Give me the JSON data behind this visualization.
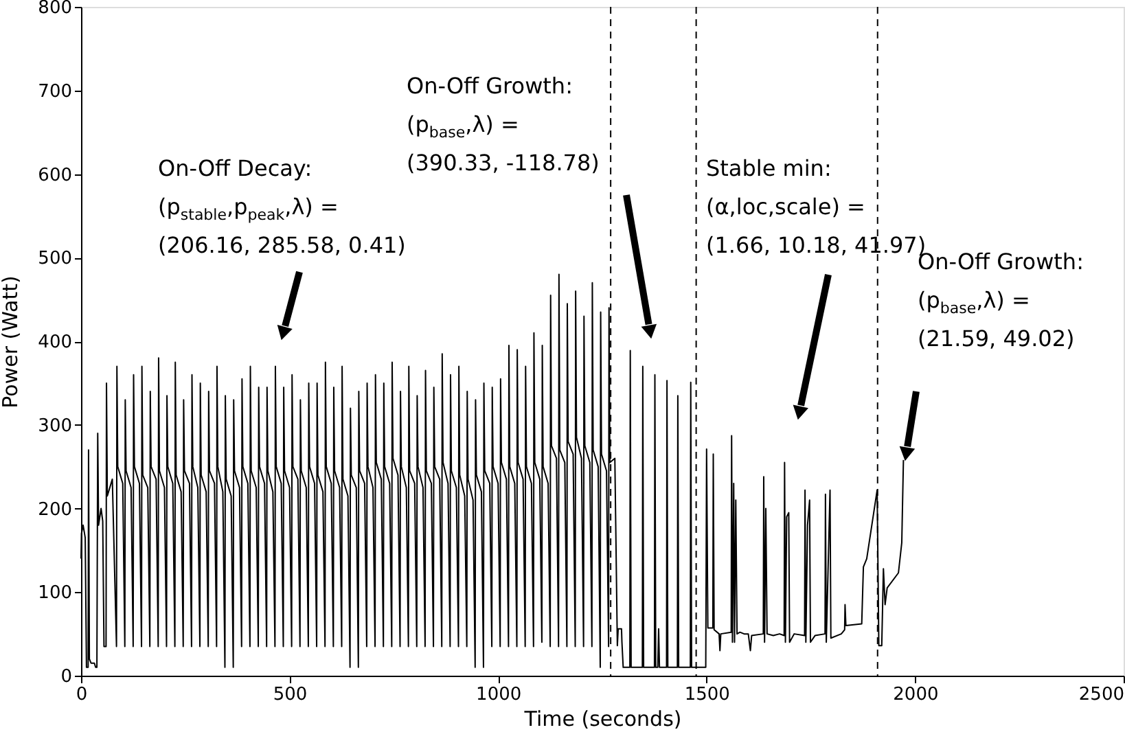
{
  "chart_data": {
    "type": "line",
    "xlabel": "Time (seconds)",
    "ylabel": "Power (Watt)",
    "xlim": [
      0,
      2500
    ],
    "ylim": [
      0,
      800
    ],
    "xticks": [
      0,
      500,
      1000,
      1500,
      2000,
      2500
    ],
    "yticks": [
      0,
      100,
      200,
      300,
      400,
      500,
      600,
      700,
      800
    ],
    "grid": false,
    "ref_lines": [
      {
        "axis": "x",
        "value": 1270,
        "line_style": "dashed",
        "color": "#000000"
      },
      {
        "axis": "x",
        "value": 1475,
        "line_style": "dashed",
        "color": "#000000"
      },
      {
        "axis": "x",
        "value": 1910,
        "line_style": "dashed",
        "color": "#000000"
      }
    ],
    "annotations": [
      "On-Off Decay:\n(p$_{stable}$,p$_{peak}$,λ) =\n(206.16, 285.58, 0.41)",
      "On-Off Growth:\n(p$_{base}$,λ) =\n(390.33, -118.78)",
      "Stable min:\n(α,loc,scale) =\n(1.66, 10.18, 41.97)",
      "On-Off Growth:\n(p$_{base}$,λ) =\n(21.59, 49.02)"
    ],
    "series": [
      {
        "color": "#000000",
        "x": [
          0,
          1,
          5,
          10,
          13,
          17,
          18,
          20,
          24,
          32,
          35,
          38,
          40,
          42,
          48,
          52,
          55,
          60,
          61,
          63,
          75,
          85,
          86,
          88,
          100,
          105,
          106,
          108,
          120,
          125,
          126,
          128,
          140,
          145,
          146,
          148,
          160,
          165,
          166,
          168,
          180,
          185,
          186,
          188,
          200,
          205,
          206,
          208,
          220,
          225,
          226,
          228,
          240,
          245,
          246,
          248,
          260,
          265,
          266,
          268,
          280,
          285,
          286,
          288,
          300,
          305,
          306,
          308,
          320,
          325,
          326,
          328,
          340,
          345,
          346,
          348,
          360,
          365,
          366,
          368,
          380,
          385,
          386,
          388,
          400,
          405,
          406,
          408,
          420,
          425,
          426,
          428,
          440,
          445,
          446,
          448,
          460,
          465,
          466,
          468,
          480,
          485,
          486,
          488,
          500,
          505,
          506,
          508,
          520,
          525,
          526,
          528,
          540,
          545,
          546,
          548,
          560,
          565,
          566,
          568,
          580,
          585,
          586,
          588,
          600,
          605,
          606,
          608,
          620,
          625,
          626,
          628,
          640,
          645,
          646,
          648,
          660,
          665,
          666,
          668,
          680,
          685,
          686,
          688,
          700,
          705,
          706,
          708,
          720,
          725,
          726,
          728,
          740,
          745,
          746,
          748,
          760,
          765,
          766,
          768,
          780,
          785,
          786,
          788,
          800,
          805,
          806,
          808,
          820,
          825,
          826,
          828,
          840,
          845,
          846,
          848,
          860,
          865,
          866,
          868,
          880,
          885,
          886,
          888,
          900,
          905,
          906,
          908,
          920,
          925,
          926,
          928,
          940,
          945,
          946,
          948,
          960,
          965,
          966,
          968,
          980,
          985,
          986,
          988,
          1000,
          1005,
          1006,
          1008,
          1020,
          1025,
          1026,
          1028,
          1040,
          1045,
          1046,
          1048,
          1060,
          1065,
          1066,
          1068,
          1080,
          1085,
          1086,
          1088,
          1100,
          1105,
          1106,
          1108,
          1120,
          1125,
          1126,
          1128,
          1140,
          1145,
          1146,
          1148,
          1160,
          1165,
          1166,
          1168,
          1180,
          1185,
          1186,
          1188,
          1200,
          1205,
          1206,
          1208,
          1220,
          1225,
          1226,
          1228,
          1240,
          1245,
          1246,
          1248,
          1260,
          1265,
          1266,
          1268,
          1280,
          1286,
          1288,
          1296,
          1297,
          1300,
          1316,
          1317,
          1319,
          1346,
          1347,
          1349,
          1375,
          1376,
          1378,
          1383,
          1385,
          1387,
          1404,
          1405,
          1407,
          1430,
          1431,
          1433,
          1461,
          1462,
          1464,
          1498,
          1500,
          1503,
          1515,
          1516,
          1518,
          1530,
          1532,
          1534,
          1559,
          1560,
          1562,
          1565,
          1567,
          1570,
          1573,
          1580,
          1590,
          1600,
          1605,
          1608,
          1636,
          1637,
          1639,
          1642,
          1645,
          1660,
          1675,
          1686,
          1687,
          1689,
          1692,
          1697,
          1699,
          1710,
          1735,
          1736,
          1738,
          1742,
          1747,
          1749,
          1760,
          1784,
          1785,
          1787,
          1796,
          1798,
          1823,
          1831,
          1832,
          1834,
          1872,
          1876,
          1884,
          1909,
          1913,
          1920,
          1924,
          1928,
          1933,
          1960,
          1968,
          1972
        ],
        "values": [
          140,
          170,
          180,
          165,
          10,
          10,
          270,
          20,
          15,
          15,
          10,
          10,
          290,
          180,
          200,
          185,
          35,
          35,
          350,
          215,
          235,
          35,
          370,
          250,
          230,
          35,
          330,
          245,
          225,
          35,
          360,
          250,
          230,
          35,
          370,
          240,
          225,
          35,
          340,
          250,
          235,
          35,
          380,
          245,
          225,
          35,
          335,
          250,
          230,
          35,
          375,
          240,
          220,
          35,
          330,
          245,
          230,
          35,
          360,
          250,
          225,
          35,
          350,
          240,
          220,
          35,
          340,
          245,
          230,
          35,
          370,
          250,
          220,
          10,
          335,
          235,
          215,
          10,
          330,
          245,
          225,
          35,
          355,
          250,
          230,
          35,
          370,
          245,
          225,
          35,
          345,
          250,
          230,
          35,
          345,
          245,
          220,
          35,
          370,
          250,
          230,
          35,
          345,
          245,
          225,
          35,
          360,
          250,
          235,
          35,
          330,
          245,
          225,
          35,
          350,
          250,
          230,
          35,
          350,
          240,
          220,
          35,
          375,
          250,
          230,
          35,
          345,
          245,
          225,
          35,
          370,
          235,
          215,
          10,
          320,
          240,
          225,
          10,
          340,
          245,
          230,
          35,
          350,
          250,
          225,
          35,
          360,
          255,
          235,
          35,
          350,
          250,
          230,
          35,
          375,
          260,
          240,
          35,
          340,
          250,
          225,
          35,
          370,
          245,
          230,
          35,
          335,
          250,
          225,
          35,
          365,
          245,
          230,
          35,
          345,
          250,
          235,
          35,
          385,
          255,
          230,
          35,
          360,
          245,
          225,
          35,
          370,
          240,
          215,
          35,
          340,
          235,
          210,
          10,
          330,
          240,
          220,
          10,
          350,
          245,
          230,
          35,
          345,
          250,
          230,
          35,
          355,
          255,
          235,
          35,
          395,
          250,
          230,
          35,
          390,
          255,
          235,
          35,
          370,
          250,
          230,
          35,
          410,
          255,
          235,
          40,
          395,
          250,
          230,
          35,
          455,
          275,
          260,
          35,
          480,
          270,
          255,
          35,
          445,
          280,
          265,
          35,
          460,
          285,
          260,
          35,
          430,
          275,
          255,
          35,
          470,
          270,
          250,
          10,
          435,
          265,
          245,
          35,
          440,
          255,
          260,
          36,
          56,
          56,
          40,
          10,
          10,
          389,
          10,
          10,
          370,
          10,
          10,
          360,
          10,
          10,
          56,
          10,
          10,
          353,
          10,
          10,
          335,
          10,
          10,
          351,
          10,
          10,
          271,
          57,
          57,
          265,
          55,
          50,
          30,
          50,
          52,
          287,
          40,
          230,
          40,
          210,
          50,
          52,
          50,
          50,
          30,
          48,
          50,
          238,
          40,
          200,
          50,
          48,
          50,
          48,
          255,
          40,
          190,
          195,
          40,
          50,
          48,
          222,
          40,
          180,
          210,
          40,
          48,
          50,
          217,
          40,
          222,
          45,
          50,
          55,
          85,
          60,
          62,
          130,
          140,
          222,
          36,
          36,
          128,
          85,
          105,
          123,
          159,
          258
        ]
      }
    ]
  }
}
